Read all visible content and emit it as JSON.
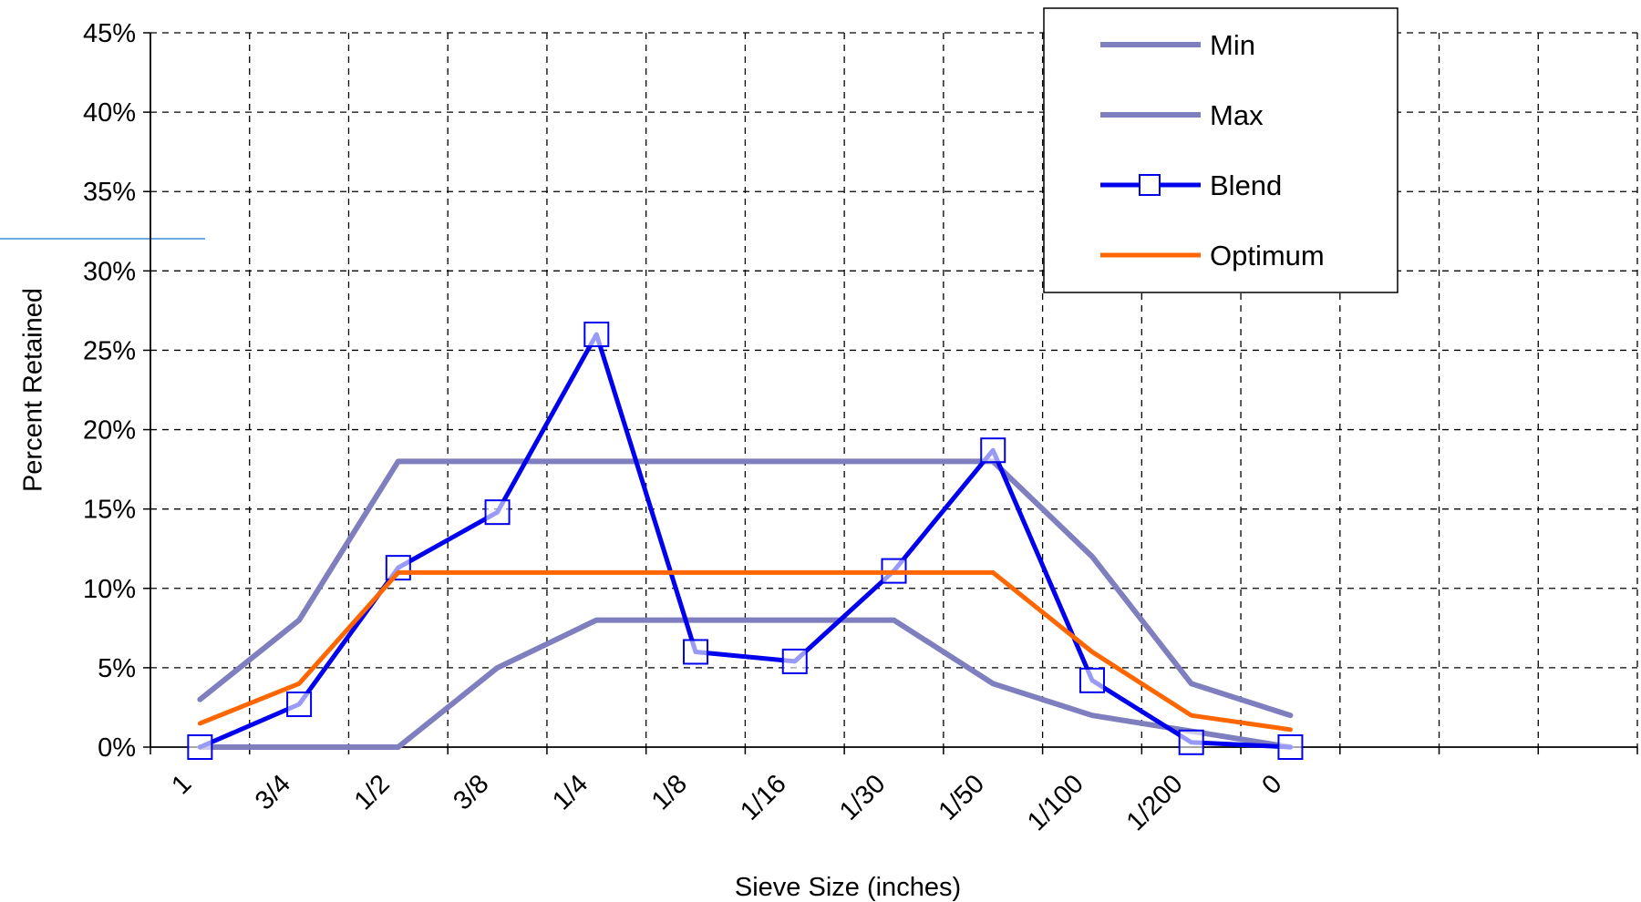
{
  "chart_data": {
    "type": "line",
    "title": "",
    "xlabel": "Sieve Size (inches)",
    "ylabel": "Percent Retained",
    "categories": [
      "1",
      "3/4",
      "1/2",
      "3/8",
      "1/4",
      "1/8",
      "1/16",
      "1/30",
      "1/50",
      "1/100",
      "1/200",
      "0"
    ],
    "ylim": [
      0,
      45
    ],
    "yticks": [
      "0%",
      "5%",
      "10%",
      "15%",
      "20%",
      "25%",
      "30%",
      "35%",
      "40%",
      "45%"
    ],
    "grid": true,
    "legend_position": "top-right",
    "series": [
      {
        "name": "Min",
        "color": "#7f7fbf",
        "marker": "none",
        "values": [
          0,
          0,
          0,
          5,
          8,
          8,
          8,
          8,
          4,
          2,
          1,
          0
        ]
      },
      {
        "name": "Max",
        "color": "#7f7fbf",
        "marker": "none",
        "values": [
          3,
          8,
          18,
          18,
          18,
          18,
          18,
          18,
          18,
          12,
          4,
          2
        ]
      },
      {
        "name": "Blend",
        "color": "#0000ee",
        "marker": "square",
        "values": [
          0,
          2.7,
          11.3,
          14.8,
          26,
          6,
          5.4,
          11.1,
          18.7,
          4.2,
          0.3,
          0
        ]
      },
      {
        "name": "Optimum",
        "color": "#ff6600",
        "marker": "none",
        "values": [
          1.5,
          4,
          11,
          11,
          11,
          11,
          11,
          11,
          11,
          6,
          2,
          1.1
        ]
      }
    ]
  }
}
